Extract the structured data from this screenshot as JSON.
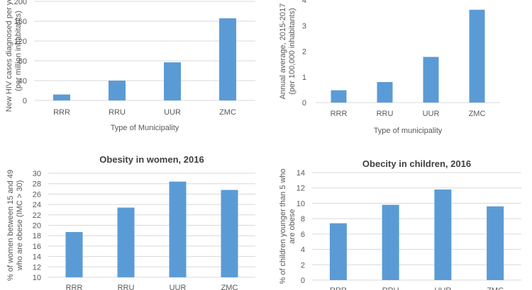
{
  "chart_data": [
    {
      "type": "bar",
      "title": "",
      "categories": [
        "RRR",
        "RRU",
        "UUR",
        "ZMC"
      ],
      "values": [
        12,
        40,
        77,
        166
      ],
      "xlabel": "Type of Municipality",
      "ylabel": "New HIV cases diagnosed per year\n(per million inhabitants)",
      "ylim": [
        0,
        200
      ],
      "yticks": [
        "0",
        "40",
        "80",
        "120",
        "160",
        "200"
      ],
      "grid": true,
      "color": "#5b9bd5"
    },
    {
      "type": "bar",
      "title": "",
      "categories": [
        "RRR",
        "RRU",
        "UUR",
        "ZMC"
      ],
      "values": [
        0.48,
        0.8,
        1.78,
        3.62
      ],
      "xlabel": "Type of municipality",
      "ylabel": "Annual average, 2015-2017\n(per 100,000 inhabitants)",
      "ylim": [
        0,
        4
      ],
      "yticks": [
        "0",
        "1",
        "2",
        "3",
        "4"
      ],
      "grid": false,
      "color": "#5b9bd5"
    },
    {
      "type": "bar",
      "title": "Obesity in women, 2016",
      "categories": [
        "RRR",
        "RRU",
        "UUR",
        "ZMC"
      ],
      "values": [
        18.7,
        23.4,
        28.4,
        26.8
      ],
      "xlabel": "",
      "ylabel": "% of women between 15 and 49\nwho are obese (IMC > 30)",
      "ylim": [
        10,
        30
      ],
      "yticks": [
        "10",
        "12",
        "14",
        "16",
        "18",
        "20",
        "22",
        "24",
        "26",
        "28",
        "30"
      ],
      "grid": true,
      "color": "#5b9bd5"
    },
    {
      "type": "bar",
      "title": "Obecity in children, 2016",
      "categories": [
        "RRR",
        "RRU",
        "UUR",
        "ZMC"
      ],
      "values": [
        7.4,
        9.8,
        11.8,
        9.6
      ],
      "xlabel": "",
      "ylabel": "% of children younger than 5 who\nare obese",
      "ylim": [
        0,
        14
      ],
      "yticks": [
        "0",
        "2",
        "4",
        "6",
        "8",
        "10",
        "12",
        "14"
      ],
      "grid": true,
      "color": "#5b9bd5"
    }
  ]
}
